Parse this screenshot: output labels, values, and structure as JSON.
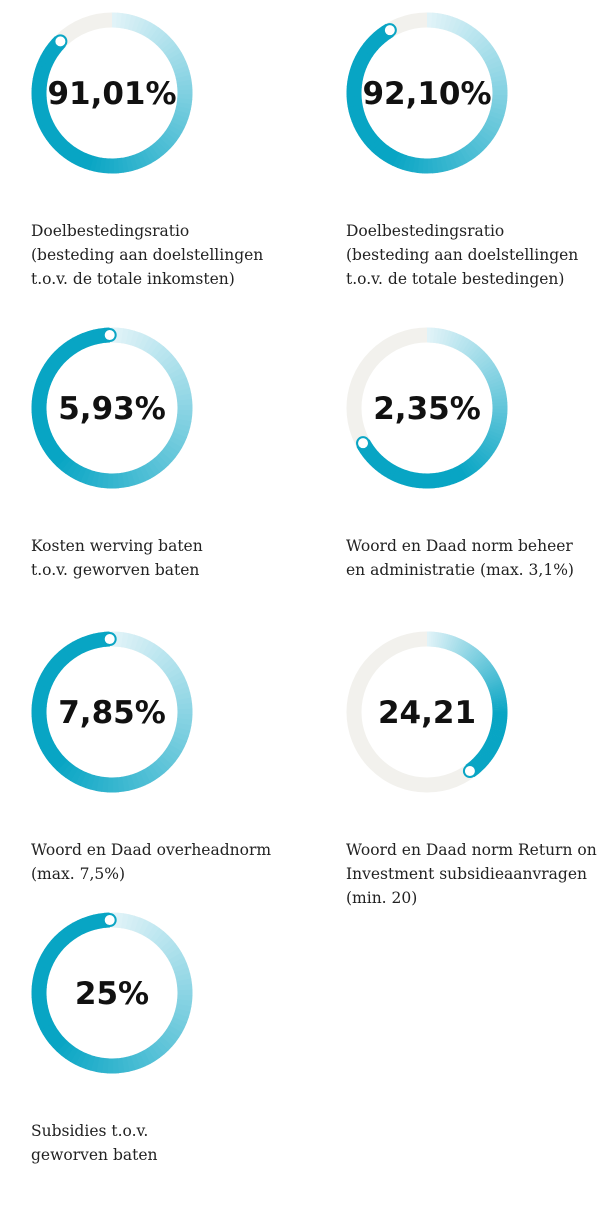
{
  "items": [
    {
      "value": "91,01%",
      "label": [
        "Doelbestedingsratio",
        "(besteding aan doelstellingen",
        "t.o.v. de totale inkomsten)"
      ]
    },
    {
      "value": "92,10%",
      "label": [
        "Doelbestedingsratio",
        "(besteding aan doelstellingen",
        "t.o.v. de totale bestedingen)"
      ]
    },
    {
      "value": "5,93%",
      "label": [
        "Kosten werving baten",
        "t.o.v. geworven baten"
      ]
    },
    {
      "value": "2,35%",
      "label": [
        "Woord en Daad norm beheer",
        "en administratie (max. 3,1%)"
      ]
    },
    {
      "value": "7,85%",
      "label": [
        "Woord en Daad overheadnorm",
        "(max. 7,5%)"
      ]
    },
    {
      "value": "24,21",
      "label": [
        "Woord en Daad norm Return on",
        "Investment subsidieaanvragen",
        "(min. 20)"
      ]
    },
    {
      "value": "25%",
      "label": [
        "Subsidies t.o.v.",
        "geworven baten"
      ]
    }
  ]
}
